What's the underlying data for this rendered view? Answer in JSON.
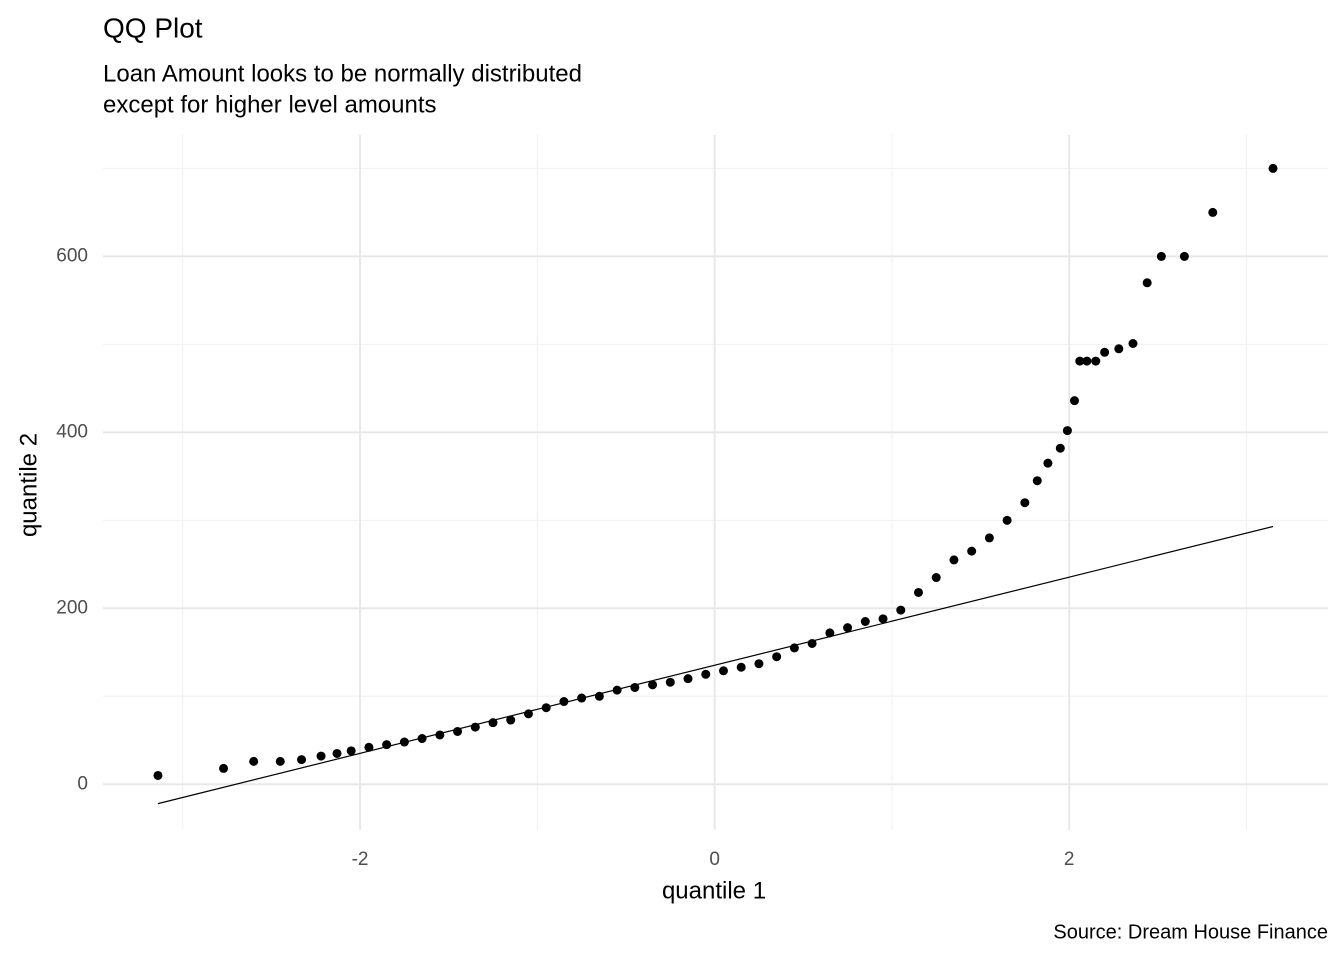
{
  "chart_data": {
    "type": "scatter",
    "title": "QQ Plot",
    "subtitle": [
      "Loan Amount looks to be normally distributed",
      "except for higher level amounts"
    ],
    "x_label": "quantile 1",
    "y_label": "quantile 2",
    "caption": "Source: Dream House Finance",
    "xlim": [
      -3.45,
      3.46
    ],
    "ylim": [
      -52,
      738
    ],
    "xticks": [
      -2,
      0,
      2
    ],
    "yticks": [
      0,
      200,
      400,
      600
    ],
    "xminorticks": [
      -3,
      -1,
      1,
      3
    ],
    "yminorticks": [
      100,
      300,
      500,
      700
    ],
    "grid": true,
    "color": "#000000",
    "x": [
      -3.14,
      -2.77,
      -2.6,
      -2.45,
      -2.33,
      -2.22,
      -2.13,
      -2.05,
      -1.95,
      -1.85,
      -1.75,
      -1.65,
      -1.55,
      -1.45,
      -1.35,
      -1.25,
      -1.15,
      -1.05,
      -0.95,
      -0.85,
      -0.75,
      -0.65,
      -0.55,
      -0.45,
      -0.35,
      -0.25,
      -0.15,
      -0.05,
      0.05,
      0.15,
      0.25,
      0.35,
      0.45,
      0.55,
      0.65,
      0.75,
      0.85,
      0.95,
      1.05,
      1.15,
      1.25,
      1.35,
      1.45,
      1.55,
      1.65,
      1.75,
      1.82,
      1.88,
      1.95,
      1.99,
      2.03,
      2.06,
      2.1,
      2.15,
      2.2,
      2.28,
      2.36,
      2.44,
      2.52,
      2.65,
      2.81,
      3.15
    ],
    "values": [
      10,
      18,
      26,
      26,
      28,
      32,
      35,
      38,
      42,
      45,
      48,
      52,
      56,
      60,
      65,
      70,
      73,
      80,
      87,
      94,
      98,
      100,
      107,
      110,
      113,
      116,
      120,
      125,
      129,
      133,
      137,
      145,
      155,
      160,
      172,
      178,
      185,
      188,
      198,
      218,
      235,
      255,
      265,
      280,
      300,
      320,
      345,
      365,
      382,
      402,
      436,
      481,
      481,
      481,
      491,
      495,
      501,
      570,
      600,
      600,
      650,
      700
    ],
    "line": {
      "x": [
        -3.14,
        3.15
      ],
      "values": [
        -22,
        293
      ],
      "color": "#000000"
    }
  }
}
